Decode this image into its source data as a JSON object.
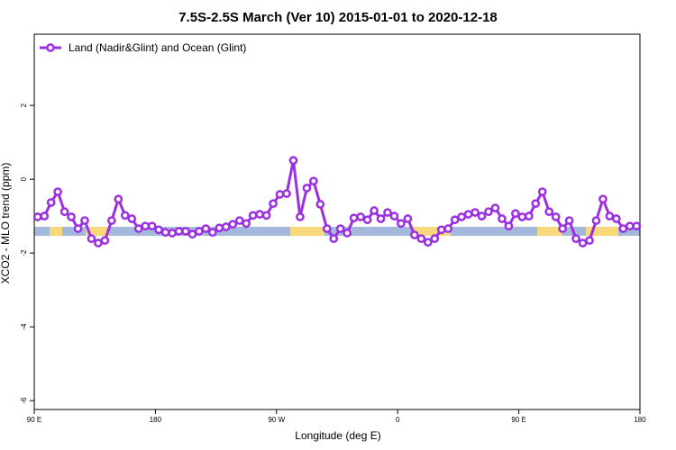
{
  "chart_data": {
    "type": "line",
    "title": "7.5S-2.5S March (Ver 10)   2015-01-01 to 2020-12-18",
    "x_label": "Longitude (deg E)",
    "y_label": "XCO2 - MLO trend (ppm)",
    "xlim": [
      90,
      540
    ],
    "ylim": [
      -6.24,
      3.93
    ],
    "xticks": [
      {
        "value": 90,
        "label": "90 E"
      },
      {
        "value": 180,
        "label": "180"
      },
      {
        "value": 270,
        "label": "90 W"
      },
      {
        "value": 360,
        "label": "0"
      },
      {
        "value": 450,
        "label": "90 E"
      },
      {
        "value": 540,
        "label": "180"
      }
    ],
    "yticks": [
      -6,
      -4,
      -2,
      0,
      2
    ],
    "legend": "top-left",
    "x": [
      92.5,
      97.5,
      102.5,
      107.5,
      112.5,
      117.5,
      122.5,
      127.5,
      132.5,
      137.5,
      142.5,
      147.5,
      152.5,
      157.5,
      162.5,
      167.5,
      172.5,
      177.5,
      182.5,
      187.5,
      192.5,
      197.5,
      202.5,
      207.5,
      212.5,
      217.5,
      222.5,
      227.5,
      232.5,
      237.5,
      242.5,
      247.5,
      252.5,
      257.5,
      262.5,
      267.5,
      272.5,
      277.5,
      282.5,
      287.5,
      292.5,
      297.5,
      302.5,
      307.5,
      312.5,
      317.5,
      322.5,
      327.5,
      332.5,
      337.5,
      342.5,
      347.5,
      352.5,
      357.5,
      362.5,
      367.5,
      372.5,
      377.5,
      382.5,
      387.5,
      392.5,
      397.5,
      402.5,
      407.5,
      412.5,
      417.5,
      422.5,
      427.5,
      432.5,
      437.5,
      442.5,
      447.5,
      452.5,
      457.5,
      462.5,
      467.5,
      472.5,
      477.5,
      482.5,
      487.5,
      492.5,
      497.5,
      502.5,
      507.5,
      512.5,
      517.5,
      522.5,
      527.5,
      532.5,
      537.5
    ],
    "series": [
      {
        "name": "Land (Nadir&Glint) and Ocean (Glint)",
        "color": "#9b30e0",
        "values": [
          -1.02,
          -1.0,
          -0.63,
          -0.34,
          -0.88,
          -1.02,
          -1.34,
          -1.12,
          -1.61,
          -1.73,
          -1.66,
          -1.12,
          -0.54,
          -0.98,
          -1.07,
          -1.34,
          -1.27,
          -1.27,
          -1.37,
          -1.44,
          -1.46,
          -1.41,
          -1.41,
          -1.49,
          -1.41,
          -1.34,
          -1.44,
          -1.32,
          -1.29,
          -1.22,
          -1.12,
          -1.2,
          -0.98,
          -0.95,
          -0.98,
          -0.66,
          -0.41,
          -0.39,
          0.51,
          -1.02,
          -0.24,
          -0.05,
          -0.68,
          -1.34,
          -1.61,
          -1.34,
          -1.46,
          -1.05,
          -1.02,
          -1.1,
          -0.85,
          -1.07,
          -0.9,
          -1.0,
          -1.2,
          -1.07,
          -1.51,
          -1.61,
          -1.71,
          -1.61,
          -1.37,
          -1.34,
          -1.1,
          -1.02,
          -0.95,
          -0.9,
          -1.0,
          -0.88,
          -0.78,
          -1.07,
          -1.27,
          -0.93,
          -1.02,
          -1.0,
          -0.66,
          -0.34,
          -0.88,
          -1.02,
          -1.34,
          -1.12,
          -1.61,
          -1.73,
          -1.66,
          -1.12,
          -0.54,
          -1.0,
          -1.07,
          -1.34,
          -1.27,
          -1.27
        ]
      }
    ]
  }
}
